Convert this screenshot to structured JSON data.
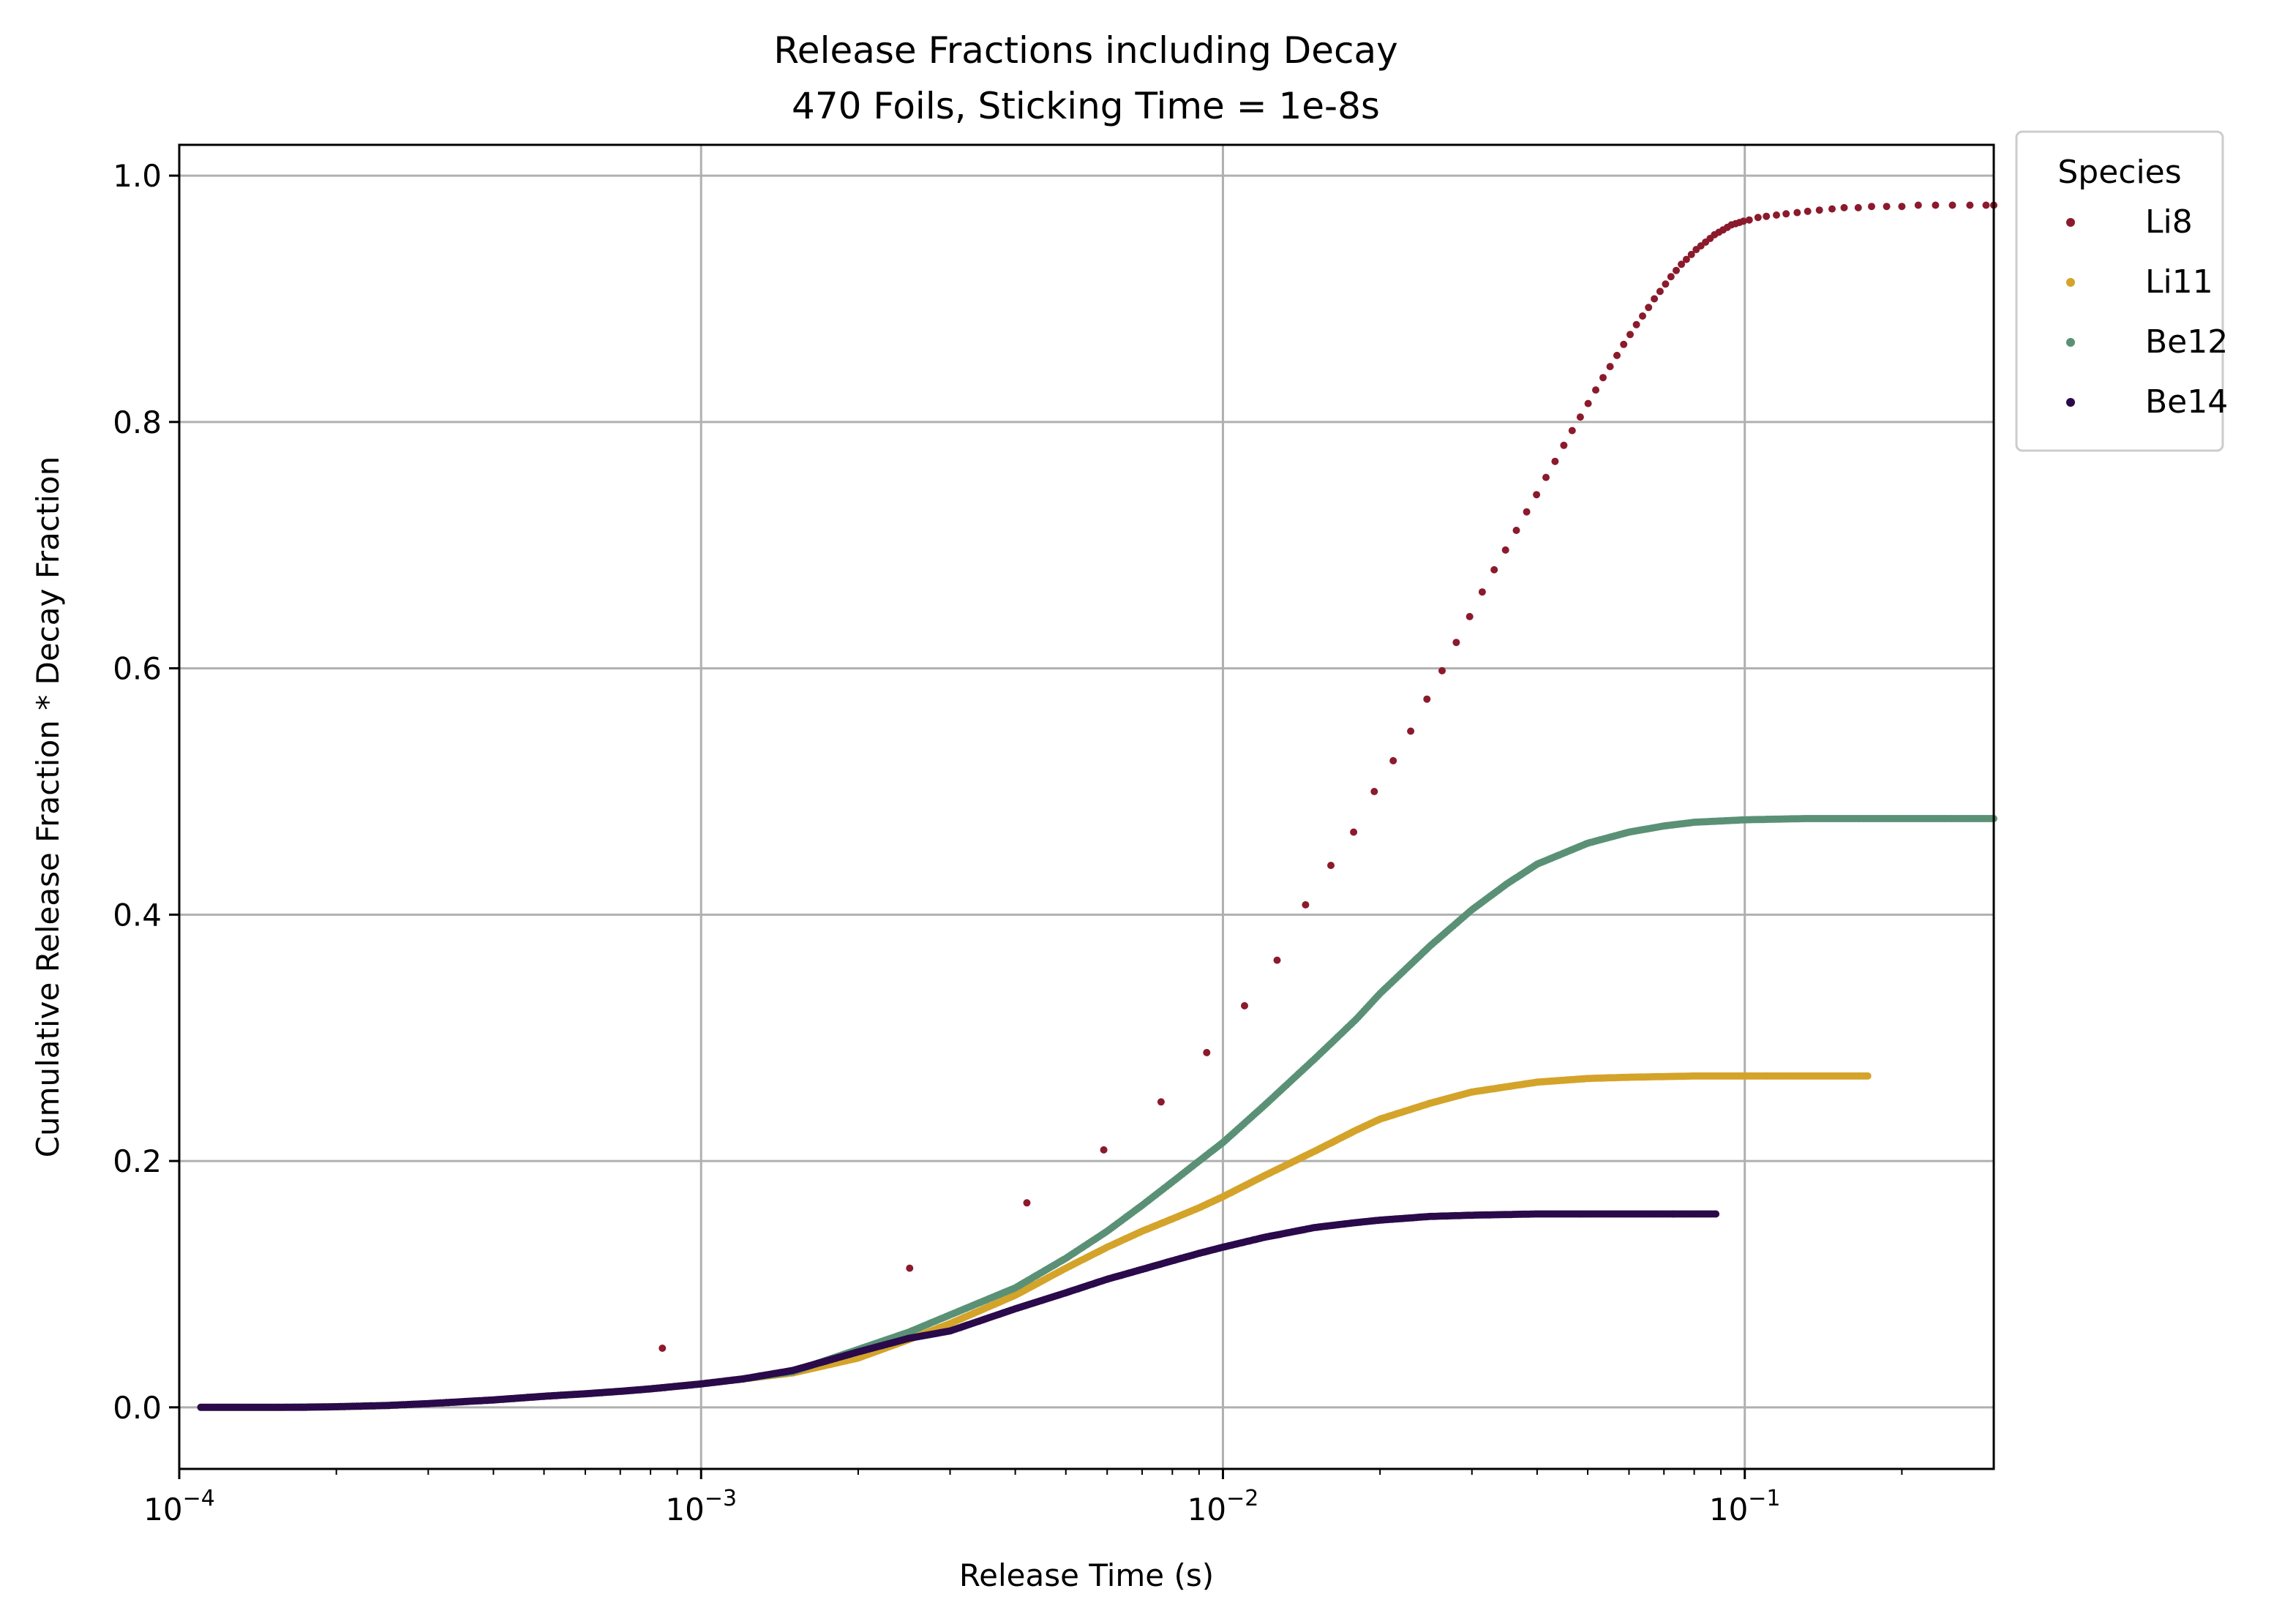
{
  "chart_data": {
    "type": "scatter",
    "title": "Release Fractions including Decay",
    "subtitle": "470 Foils, Sticking Time = 1e-8s",
    "xlabel": "Release Time (s)",
    "ylabel": "Cumulative Release Fraction * Decay Fraction",
    "xscale": "log",
    "xlim": [
      0.0001,
      0.3
    ],
    "ylim": [
      -0.05,
      1.025
    ],
    "x_ticks": [
      {
        "value": 0.0001,
        "base": "10",
        "exp": "−4"
      },
      {
        "value": 0.001,
        "base": "10",
        "exp": "−3"
      },
      {
        "value": 0.01,
        "base": "10",
        "exp": "−2"
      },
      {
        "value": 0.1,
        "base": "10",
        "exp": "−1"
      }
    ],
    "y_ticks": [
      {
        "value": 0.0,
        "label": "0.0"
      },
      {
        "value": 0.2,
        "label": "0.2"
      },
      {
        "value": 0.4,
        "label": "0.4"
      },
      {
        "value": 0.6,
        "label": "0.6"
      },
      {
        "value": 0.8,
        "label": "0.8"
      },
      {
        "value": 1.0,
        "label": "1.0"
      }
    ],
    "grid": true,
    "legend": {
      "title": "Species",
      "placement": "outside-top-right"
    },
    "series": [
      {
        "name": "Li8",
        "color": "#8b1a2c",
        "points": [
          [
            0.000843,
            0.048
          ],
          [
            0.00251,
            0.113
          ],
          [
            0.00421,
            0.166
          ],
          [
            0.00591,
            0.209
          ],
          [
            0.00761,
            0.248
          ],
          [
            0.00931,
            0.288
          ],
          [
            0.011,
            0.326
          ],
          [
            0.0127,
            0.363
          ],
          [
            0.0144,
            0.408
          ],
          [
            0.0161,
            0.44
          ],
          [
            0.0178,
            0.467
          ],
          [
            0.0195,
            0.5
          ],
          [
            0.0212,
            0.525
          ],
          [
            0.0229,
            0.549
          ],
          [
            0.0246,
            0.575
          ],
          [
            0.0263,
            0.598
          ],
          [
            0.028,
            0.621
          ],
          [
            0.0297,
            0.642
          ],
          [
            0.0314,
            0.662
          ],
          [
            0.0331,
            0.68
          ],
          [
            0.0348,
            0.696
          ],
          [
            0.0365,
            0.712
          ],
          [
            0.0382,
            0.727
          ],
          [
            0.0399,
            0.741
          ],
          [
            0.0416,
            0.755
          ],
          [
            0.0433,
            0.768
          ],
          [
            0.045,
            0.781
          ],
          [
            0.0467,
            0.793
          ],
          [
            0.0484,
            0.804
          ],
          [
            0.0501,
            0.815
          ],
          [
            0.0518,
            0.826
          ],
          [
            0.0535,
            0.836
          ],
          [
            0.0552,
            0.845
          ],
          [
            0.0569,
            0.854
          ],
          [
            0.0586,
            0.863
          ],
          [
            0.0603,
            0.871
          ],
          [
            0.062,
            0.879
          ],
          [
            0.0637,
            0.886
          ],
          [
            0.0654,
            0.893
          ],
          [
            0.0671,
            0.9
          ],
          [
            0.0688,
            0.906
          ],
          [
            0.0705,
            0.912
          ],
          [
            0.0722,
            0.918
          ],
          [
            0.0739,
            0.923
          ],
          [
            0.0756,
            0.928
          ],
          [
            0.0773,
            0.932
          ],
          [
            0.079,
            0.936
          ],
          [
            0.0807,
            0.94
          ],
          [
            0.0824,
            0.943
          ],
          [
            0.0841,
            0.946
          ],
          [
            0.0858,
            0.949
          ],
          [
            0.0875,
            0.952
          ],
          [
            0.0892,
            0.954
          ],
          [
            0.0909,
            0.956
          ],
          [
            0.0926,
            0.958
          ],
          [
            0.0943,
            0.96
          ],
          [
            0.096,
            0.961
          ],
          [
            0.0977,
            0.962
          ],
          [
            0.0994,
            0.963
          ],
          [
            0.102,
            0.964
          ],
          [
            0.106,
            0.966
          ],
          [
            0.11,
            0.967
          ],
          [
            0.115,
            0.968
          ],
          [
            0.12,
            0.969
          ],
          [
            0.126,
            0.97
          ],
          [
            0.132,
            0.971
          ],
          [
            0.139,
            0.972
          ],
          [
            0.147,
            0.973
          ],
          [
            0.155,
            0.974
          ],
          [
            0.165,
            0.974
          ],
          [
            0.175,
            0.975
          ],
          [
            0.187,
            0.975
          ],
          [
            0.2,
            0.975
          ],
          [
            0.215,
            0.976
          ],
          [
            0.232,
            0.976
          ],
          [
            0.25,
            0.976
          ],
          [
            0.27,
            0.976
          ],
          [
            0.29,
            0.976
          ],
          [
            0.3,
            0.976
          ]
        ]
      },
      {
        "name": "Li11",
        "color": "#d4a32a",
        "points": [
          [
            0.00011,
            0.0
          ],
          [
            0.00015,
            0.0
          ],
          [
            0.0002,
            0.0005
          ],
          [
            0.00025,
            0.0015
          ],
          [
            0.0003,
            0.003
          ],
          [
            0.0004,
            0.006
          ],
          [
            0.0005,
            0.009
          ],
          [
            0.0006,
            0.011
          ],
          [
            0.0007,
            0.013
          ],
          [
            0.0008,
            0.015
          ],
          [
            0.001,
            0.019
          ],
          [
            0.0012,
            0.023
          ],
          [
            0.0015,
            0.028
          ],
          [
            0.002,
            0.04
          ],
          [
            0.0025,
            0.055
          ],
          [
            0.003,
            0.068
          ],
          [
            0.004,
            0.091
          ],
          [
            0.005,
            0.113
          ],
          [
            0.006,
            0.13
          ],
          [
            0.007,
            0.143
          ],
          [
            0.008,
            0.153
          ],
          [
            0.009,
            0.162
          ],
          [
            0.01,
            0.171
          ],
          [
            0.012,
            0.188
          ],
          [
            0.015,
            0.208
          ],
          [
            0.018,
            0.225
          ],
          [
            0.02,
            0.234
          ],
          [
            0.025,
            0.247
          ],
          [
            0.03,
            0.256
          ],
          [
            0.04,
            0.264
          ],
          [
            0.05,
            0.267
          ],
          [
            0.06,
            0.268
          ],
          [
            0.08,
            0.269
          ],
          [
            0.1,
            0.269
          ],
          [
            0.13,
            0.269
          ],
          [
            0.172,
            0.269
          ]
        ]
      },
      {
        "name": "Be12",
        "color": "#5a9176",
        "points": [
          [
            0.00011,
            0.0
          ],
          [
            0.00015,
            0.0
          ],
          [
            0.0002,
            0.0005
          ],
          [
            0.00025,
            0.0015
          ],
          [
            0.0003,
            0.003
          ],
          [
            0.0004,
            0.006
          ],
          [
            0.0005,
            0.009
          ],
          [
            0.0006,
            0.011
          ],
          [
            0.0007,
            0.013
          ],
          [
            0.0008,
            0.015
          ],
          [
            0.001,
            0.019
          ],
          [
            0.0012,
            0.023
          ],
          [
            0.0015,
            0.029
          ],
          [
            0.002,
            0.047
          ],
          [
            0.0025,
            0.061
          ],
          [
            0.003,
            0.075
          ],
          [
            0.004,
            0.097
          ],
          [
            0.005,
            0.121
          ],
          [
            0.006,
            0.143
          ],
          [
            0.007,
            0.164
          ],
          [
            0.008,
            0.183
          ],
          [
            0.009,
            0.2
          ],
          [
            0.01,
            0.215
          ],
          [
            0.012,
            0.245
          ],
          [
            0.015,
            0.283
          ],
          [
            0.018,
            0.315
          ],
          [
            0.02,
            0.336
          ],
          [
            0.025,
            0.375
          ],
          [
            0.03,
            0.404
          ],
          [
            0.035,
            0.425
          ],
          [
            0.04,
            0.441
          ],
          [
            0.05,
            0.458
          ],
          [
            0.06,
            0.467
          ],
          [
            0.07,
            0.472
          ],
          [
            0.08,
            0.475
          ],
          [
            0.1,
            0.477
          ],
          [
            0.13,
            0.478
          ],
          [
            0.16,
            0.478
          ],
          [
            0.2,
            0.478
          ],
          [
            0.25,
            0.478
          ],
          [
            0.3,
            0.478
          ]
        ]
      },
      {
        "name": "Be14",
        "color": "#2a0a4a",
        "points": [
          [
            0.00011,
            0.0
          ],
          [
            0.00013,
            0.0
          ],
          [
            0.00015,
            0.0
          ],
          [
            0.00017,
            0.0
          ],
          [
            0.0002,
            0.0005
          ],
          [
            0.00025,
            0.0015
          ],
          [
            0.0003,
            0.003
          ],
          [
            0.0004,
            0.006
          ],
          [
            0.0005,
            0.009
          ],
          [
            0.0006,
            0.011
          ],
          [
            0.0007,
            0.013
          ],
          [
            0.0008,
            0.015
          ],
          [
            0.001,
            0.019
          ],
          [
            0.0012,
            0.023
          ],
          [
            0.0015,
            0.03
          ],
          [
            0.002,
            0.045
          ],
          [
            0.0025,
            0.056
          ],
          [
            0.003,
            0.062
          ],
          [
            0.004,
            0.08
          ],
          [
            0.005,
            0.093
          ],
          [
            0.006,
            0.104
          ],
          [
            0.007,
            0.112
          ],
          [
            0.008,
            0.119
          ],
          [
            0.009,
            0.125
          ],
          [
            0.01,
            0.13
          ],
          [
            0.012,
            0.138
          ],
          [
            0.015,
            0.146
          ],
          [
            0.018,
            0.15
          ],
          [
            0.02,
            0.152
          ],
          [
            0.025,
            0.155
          ],
          [
            0.03,
            0.156
          ],
          [
            0.04,
            0.157
          ],
          [
            0.05,
            0.157
          ],
          [
            0.06,
            0.157
          ],
          [
            0.07,
            0.157
          ],
          [
            0.088,
            0.157
          ]
        ]
      }
    ]
  }
}
